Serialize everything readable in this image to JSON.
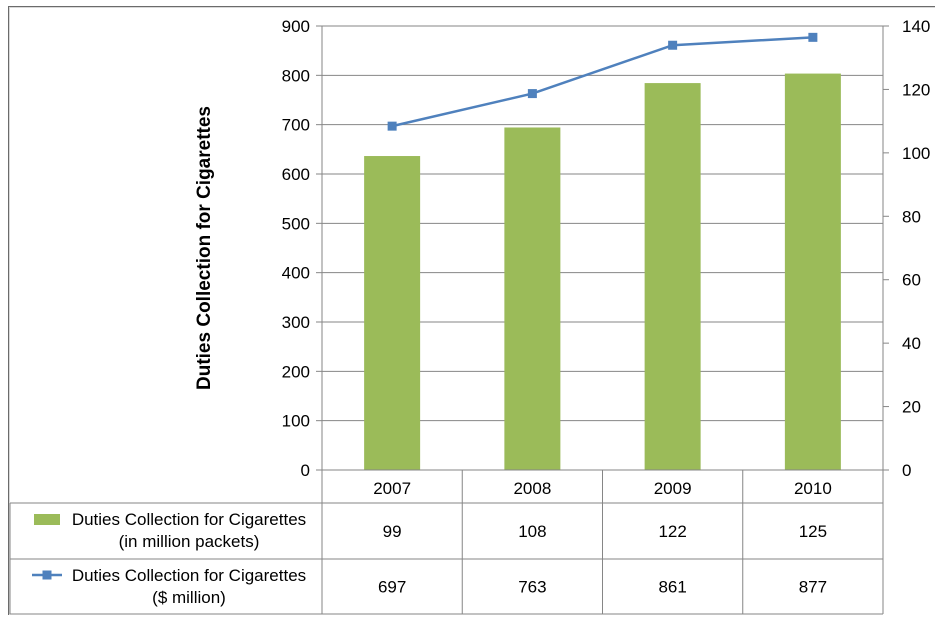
{
  "chart_data": {
    "type": "bar",
    "categories": [
      "2007",
      "2008",
      "2009",
      "2010"
    ],
    "ylabel": "Duties Collection for Cigarettes",
    "ylim": [
      0,
      900
    ],
    "yticks": [
      0,
      100,
      200,
      300,
      400,
      500,
      600,
      700,
      800,
      900
    ],
    "y2lim": [
      0,
      140
    ],
    "y2ticks": [
      0,
      20,
      40,
      60,
      80,
      100,
      120,
      140
    ],
    "grid": true,
    "legend": "data-table",
    "series": [
      {
        "name_lines": [
          "Duties Collection for Cigarettes",
          "(in million packets)"
        ],
        "chart_type": "bar",
        "axis": "right",
        "color": "#9bbb59",
        "values": [
          99,
          108,
          122,
          125
        ]
      },
      {
        "name_lines": [
          "Duties Collection for Cigarettes",
          "($ million)"
        ],
        "chart_type": "line",
        "axis": "left",
        "color": "#4f81bd",
        "values": [
          697,
          763,
          861,
          877
        ]
      }
    ]
  }
}
